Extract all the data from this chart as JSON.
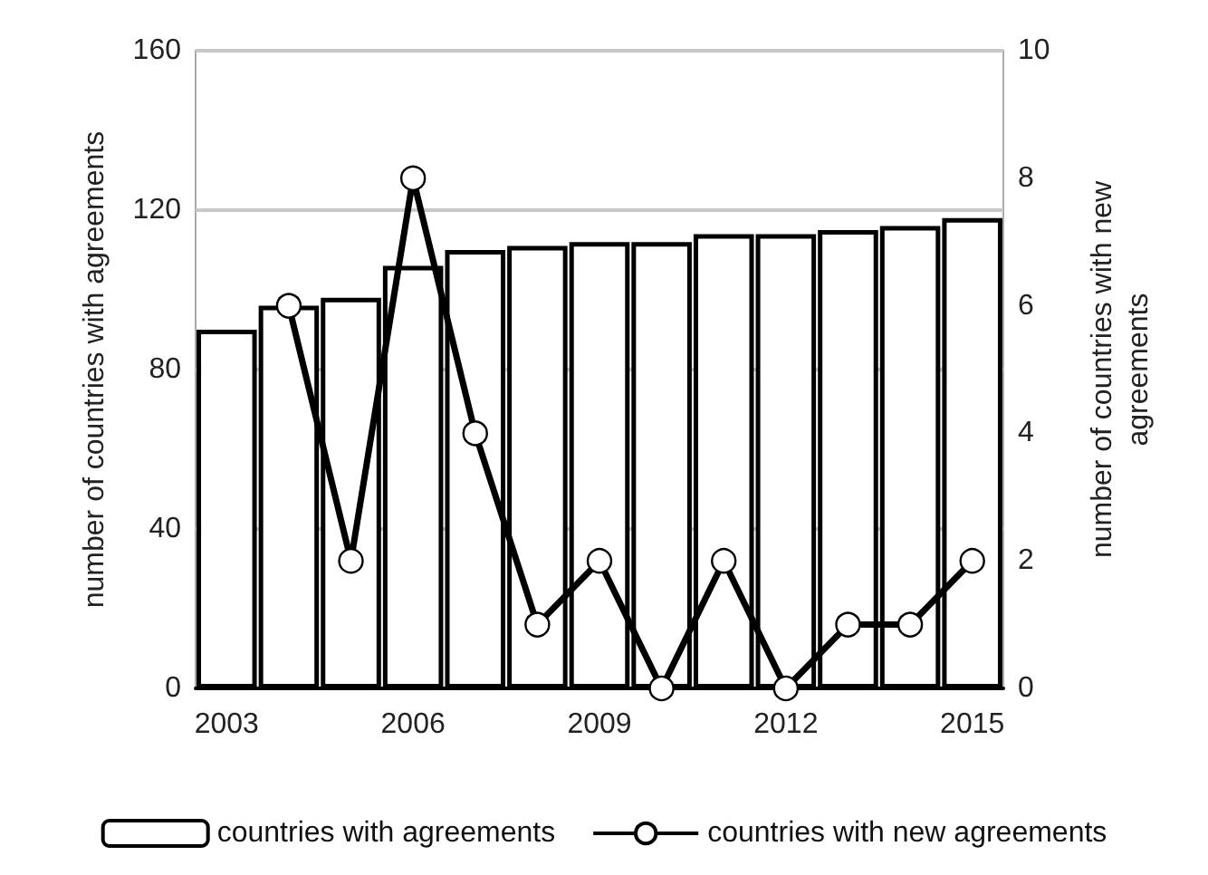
{
  "chart_data": {
    "type": "bar",
    "ylabel": "number of countries with agreements",
    "y2label": "number of countries with new agreements",
    "categories": [
      "2003",
      null,
      null,
      "2006",
      null,
      null,
      "2009",
      null,
      null,
      "2012",
      null,
      null,
      "2015"
    ],
    "series": [
      {
        "name": "countries with agreements",
        "color": "#ffffff",
        "values": [
          90,
          96,
          98,
          106,
          110,
          111,
          112,
          112,
          114,
          114,
          115,
          116,
          118
        ]
      },
      {
        "name": "countries with new agreements",
        "type": "line",
        "axis": "y2",
        "color": "#000000",
        "values": [
          null,
          6,
          2,
          8,
          4,
          1,
          2,
          0,
          2,
          0,
          1,
          1,
          2
        ]
      }
    ],
    "ylim": [
      0,
      160
    ],
    "yticks": [
      0,
      40,
      80,
      120,
      160
    ],
    "y2lim": [
      0,
      10
    ],
    "y2ticks": [
      0,
      2,
      4,
      6,
      8,
      10
    ],
    "grid": "y",
    "legend": "bottom",
    "marker": "circle",
    "line_style": "solid"
  }
}
